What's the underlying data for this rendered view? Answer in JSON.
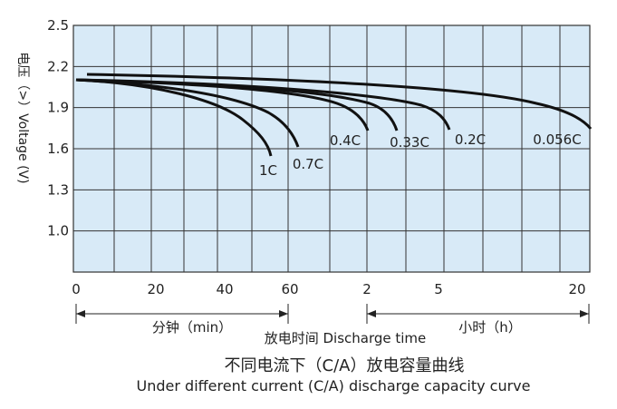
{
  "chart_data": {
    "type": "line",
    "title_zh": "不同电流下（C/A）放电容量曲线",
    "title_en": "Under different current (C/A) discharge capacity curve",
    "ylabel": "电压（>）Voltage (V)",
    "xlabel": "放电时间  Discharge time",
    "ylim": [
      0.7,
      2.5
    ],
    "yticks": [
      "2.5",
      "2.2",
      "1.9",
      "1.6",
      "1.3",
      "1.0"
    ],
    "ytick_values": [
      2.5,
      2.2,
      1.9,
      1.6,
      1.3,
      1.0
    ],
    "xticks": [
      "0",
      "20",
      "40",
      "60",
      "2",
      "5",
      "20"
    ],
    "x_segments": [
      {
        "label": "分钟（min）",
        "unit": "min",
        "from": "0",
        "to": "60"
      },
      {
        "label": "小时（h）",
        "unit": "h",
        "from": "2",
        "to": "20"
      }
    ],
    "series": [
      {
        "name": "1C",
        "x": [
          0,
          20,
          40,
          50,
          55
        ],
        "values": [
          2.1,
          2.05,
          1.9,
          1.75,
          1.55
        ]
      },
      {
        "name": "0.7C",
        "x": [
          0,
          20,
          40,
          55,
          63
        ],
        "values": [
          2.1,
          2.07,
          1.97,
          1.82,
          1.62
        ]
      },
      {
        "name": "0.4C",
        "x": [
          0,
          30,
          60,
          "1.5h",
          "2.1h"
        ],
        "values": [
          2.1,
          2.07,
          2.0,
          1.9,
          1.77
        ]
      },
      {
        "name": "0.33C",
        "x": [
          0,
          30,
          60,
          "2h",
          "3h"
        ],
        "values": [
          2.1,
          2.08,
          2.02,
          1.93,
          1.77
        ]
      },
      {
        "name": "0.2C",
        "x": [
          0,
          60,
          "2h",
          "4h",
          "5.5h"
        ],
        "values": [
          2.1,
          2.09,
          2.05,
          1.95,
          1.77
        ]
      },
      {
        "name": "0.056C",
        "x": [
          0,
          60,
          "2h",
          "5h",
          "10h",
          "20h"
        ],
        "values": [
          2.13,
          2.12,
          2.1,
          2.07,
          2.0,
          1.77
        ]
      }
    ]
  }
}
